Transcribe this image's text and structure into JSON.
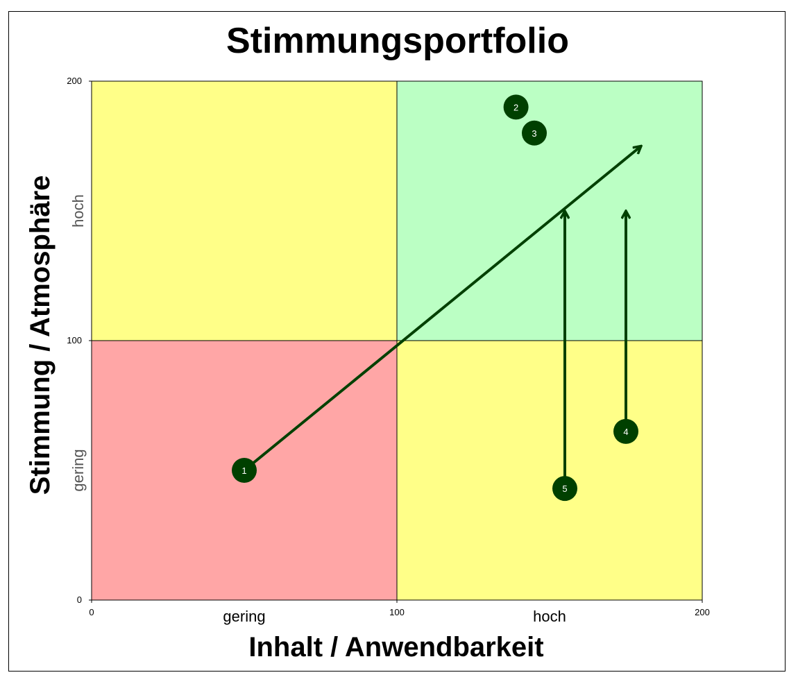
{
  "chart_data": {
    "type": "scatter",
    "title": "Stimmungsportfolio",
    "xlabel": "Inhalt / Anwendbarkeit",
    "ylabel": "Stimmung / Atmosphäre",
    "xlim": [
      0,
      200
    ],
    "ylim": [
      0,
      200
    ],
    "x_ticks": [
      "0",
      "100",
      "200"
    ],
    "y_ticks": [
      "0",
      "100",
      "200"
    ],
    "x_axis_hints": {
      "low": "gering",
      "high": "hoch"
    },
    "y_axis_hints": {
      "low": "gering",
      "high": "hoch"
    },
    "quadrant_colors": {
      "low_low": "#ffa6a6",
      "high_low": "#ffff88",
      "low_high": "#ffff88",
      "high_high": "#bbffc4"
    },
    "marker_color": "#004000",
    "points": [
      {
        "label": "1",
        "x": 50,
        "y": 50
      },
      {
        "label": "2",
        "x": 139,
        "y": 190
      },
      {
        "label": "3",
        "x": 145,
        "y": 180
      },
      {
        "label": "4",
        "x": 175,
        "y": 65
      },
      {
        "label": "5",
        "x": 155,
        "y": 43
      }
    ],
    "arrows": [
      {
        "from_point": "1",
        "to": {
          "x": 180,
          "y": 175
        }
      },
      {
        "from_point": "5",
        "to": {
          "x": 155,
          "y": 150
        }
      },
      {
        "from_point": "4",
        "to": {
          "x": 175,
          "y": 150
        }
      }
    ],
    "grid": false
  }
}
